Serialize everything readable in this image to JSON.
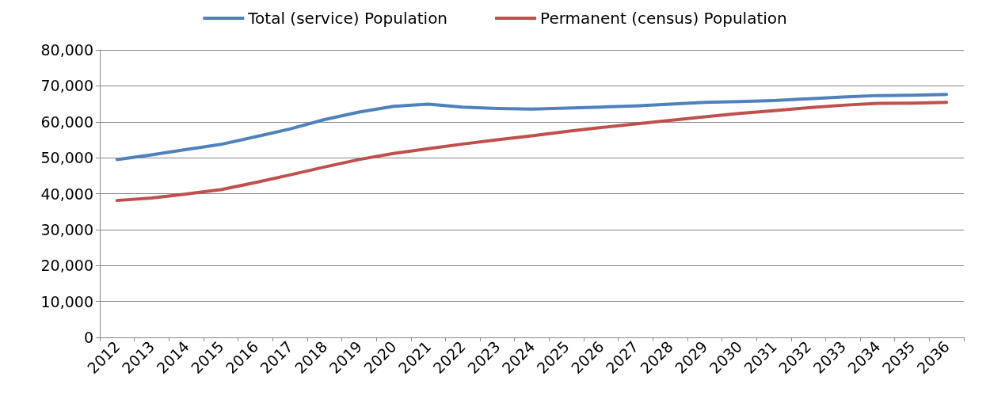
{
  "chart_data": {
    "type": "line",
    "categories": [
      "2012",
      "2013",
      "2014",
      "2015",
      "2016",
      "2017",
      "2018",
      "2019",
      "2020",
      "2021",
      "2022",
      "2023",
      "2024",
      "2025",
      "2026",
      "2027",
      "2028",
      "2029",
      "2030",
      "2031",
      "2032",
      "2033",
      "2034",
      "2035",
      "2036"
    ],
    "series": [
      {
        "name": "Total (service) Population",
        "color": "#4f81bd",
        "values": [
          49500,
          50800,
          52300,
          53700,
          55800,
          58000,
          60600,
          62700,
          64300,
          64900,
          64100,
          63700,
          63500,
          63800,
          64100,
          64400,
          64900,
          65400,
          65600,
          65900,
          66400,
          66900,
          67300,
          67400,
          67600
        ]
      },
      {
        "name": "Permanent (census) Population",
        "color": "#c0504d",
        "values": [
          38100,
          38800,
          39900,
          41100,
          43100,
          45200,
          47400,
          49500,
          51200,
          52500,
          53800,
          55000,
          56100,
          57300,
          58400,
          59400,
          60400,
          61400,
          62300,
          63100,
          63900,
          64600,
          65100,
          65200,
          65400
        ]
      }
    ],
    "ylim": [
      0,
      80000
    ],
    "yticks": [
      0,
      {
        "value": 10000,
        "label": "10,000"
      },
      {
        "value": 20000,
        "label": "20,000"
      },
      {
        "value": 30000,
        "label": "30,000"
      },
      {
        "value": 40000,
        "label": "40,000"
      },
      {
        "value": 50000,
        "label": "50,000"
      },
      {
        "value": 60000,
        "label": "60,000"
      },
      {
        "value": 70000,
        "label": "70,000"
      },
      {
        "value": 80000,
        "label": "80,000"
      }
    ],
    "grid": "y",
    "legend": "top",
    "marker": "none",
    "line_style": "solid"
  }
}
